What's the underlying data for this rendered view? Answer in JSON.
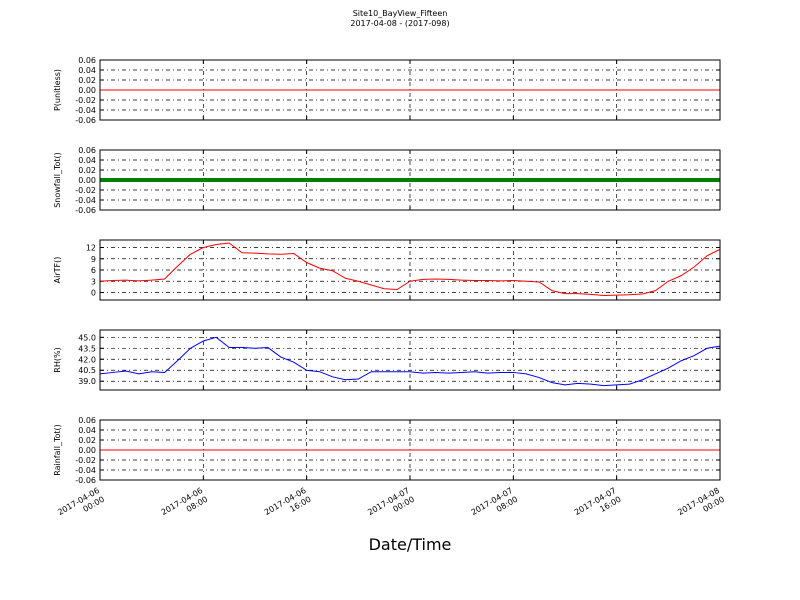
{
  "chart_data": [
    {
      "type": "line",
      "title": "Site10_BayView_Fifteen",
      "subtitle": "2017-04-08 - (2017-098)",
      "ylabel": "P(unitless)",
      "x": [
        "2017-04-06 00:00",
        "2017-04-06 01:00",
        "2017-04-06 02:00",
        "2017-04-06 03:00",
        "2017-04-06 04:00",
        "2017-04-06 05:00",
        "2017-04-06 06:00",
        "2017-04-06 07:00",
        "2017-04-06 08:00",
        "2017-04-06 09:00",
        "2017-04-06 10:00",
        "2017-04-06 11:00",
        "2017-04-06 12:00",
        "2017-04-06 13:00",
        "2017-04-06 14:00",
        "2017-04-06 15:00",
        "2017-04-06 16:00",
        "2017-04-06 17:00",
        "2017-04-06 18:00",
        "2017-04-06 19:00",
        "2017-04-06 20:00",
        "2017-04-06 21:00",
        "2017-04-06 22:00",
        "2017-04-06 23:00",
        "2017-04-07 00:00",
        "2017-04-07 01:00",
        "2017-04-07 02:00",
        "2017-04-07 03:00",
        "2017-04-07 04:00",
        "2017-04-07 05:00",
        "2017-04-07 06:00",
        "2017-04-07 07:00",
        "2017-04-07 08:00",
        "2017-04-07 09:00",
        "2017-04-07 10:00",
        "2017-04-07 11:00",
        "2017-04-07 12:00",
        "2017-04-07 13:00",
        "2017-04-07 14:00",
        "2017-04-07 15:00",
        "2017-04-07 16:00",
        "2017-04-07 17:00",
        "2017-04-07 18:00",
        "2017-04-07 19:00",
        "2017-04-07 20:00",
        "2017-04-07 21:00",
        "2017-04-07 22:00",
        "2017-04-07 23:00",
        "2017-04-08 00:00"
      ],
      "series": [
        {
          "color": "#ff0000",
          "values": [
            0,
            0,
            0,
            0,
            0,
            0,
            0,
            0,
            0,
            0,
            0,
            0,
            0,
            0,
            0,
            0,
            0,
            0,
            0,
            0,
            0,
            0,
            0,
            0,
            0,
            0,
            0,
            0,
            0,
            0,
            0,
            0,
            0,
            0,
            0,
            0,
            0,
            0,
            0,
            0,
            0,
            0,
            0,
            0,
            0,
            0,
            0,
            0,
            0
          ]
        }
      ],
      "ylim": [
        -0.06,
        0.06
      ],
      "yticks": [
        -0.06,
        -0.04,
        -0.02,
        {
          "value": 0,
          "label": "0.00"
        },
        0.02,
        0.04,
        0.06
      ],
      "grid": true
    },
    {
      "type": "line",
      "ylabel": "Snowfall_Tot()",
      "x": [
        "2017-04-06 00:00",
        "2017-04-06 01:00",
        "2017-04-06 02:00",
        "2017-04-06 03:00",
        "2017-04-06 04:00",
        "2017-04-06 05:00",
        "2017-04-06 06:00",
        "2017-04-06 07:00",
        "2017-04-06 08:00",
        "2017-04-06 09:00",
        "2017-04-06 10:00",
        "2017-04-06 11:00",
        "2017-04-06 12:00",
        "2017-04-06 13:00",
        "2017-04-06 14:00",
        "2017-04-06 15:00",
        "2017-04-06 16:00",
        "2017-04-06 17:00",
        "2017-04-06 18:00",
        "2017-04-06 19:00",
        "2017-04-06 20:00",
        "2017-04-06 21:00",
        "2017-04-06 22:00",
        "2017-04-06 23:00",
        "2017-04-07 00:00",
        "2017-04-07 01:00",
        "2017-04-07 02:00",
        "2017-04-07 03:00",
        "2017-04-07 04:00",
        "2017-04-07 05:00",
        "2017-04-07 06:00",
        "2017-04-07 07:00",
        "2017-04-07 08:00",
        "2017-04-07 09:00",
        "2017-04-07 10:00",
        "2017-04-07 11:00",
        "2017-04-07 12:00",
        "2017-04-07 13:00",
        "2017-04-07 14:00",
        "2017-04-07 15:00",
        "2017-04-07 16:00",
        "2017-04-07 17:00",
        "2017-04-07 18:00",
        "2017-04-07 19:00",
        "2017-04-07 20:00",
        "2017-04-07 21:00",
        "2017-04-07 22:00",
        "2017-04-07 23:00",
        "2017-04-08 00:00"
      ],
      "series": [
        {
          "color": "#008000",
          "values": [
            0,
            0,
            0,
            0,
            0,
            0,
            0,
            0,
            0,
            0,
            0,
            0,
            0,
            0,
            0,
            0,
            0,
            0,
            0,
            0,
            0,
            0,
            0,
            0,
            0,
            0,
            0,
            0,
            0,
            0,
            0,
            0,
            0,
            0,
            0,
            0,
            0,
            0,
            0,
            0,
            0,
            0,
            0,
            0,
            0,
            0,
            0,
            0,
            0
          ]
        }
      ],
      "ylim": [
        -0.06,
        0.06
      ],
      "yticks": [
        -0.06,
        -0.04,
        -0.02,
        {
          "value": 0,
          "label": "0.00"
        },
        0.02,
        0.04,
        0.06
      ],
      "grid": true
    },
    {
      "type": "line",
      "ylabel": "AirTF()",
      "x": [
        "2017-04-06 00:00",
        "2017-04-06 01:00",
        "2017-04-06 02:00",
        "2017-04-06 03:00",
        "2017-04-06 04:00",
        "2017-04-06 05:00",
        "2017-04-06 06:00",
        "2017-04-06 07:00",
        "2017-04-06 08:00",
        "2017-04-06 09:00",
        "2017-04-06 10:00",
        "2017-04-06 11:00",
        "2017-04-06 12:00",
        "2017-04-06 13:00",
        "2017-04-06 14:00",
        "2017-04-06 15:00",
        "2017-04-06 16:00",
        "2017-04-06 17:00",
        "2017-04-06 18:00",
        "2017-04-06 19:00",
        "2017-04-06 20:00",
        "2017-04-06 21:00",
        "2017-04-06 22:00",
        "2017-04-06 23:00",
        "2017-04-07 00:00",
        "2017-04-07 01:00",
        "2017-04-07 02:00",
        "2017-04-07 03:00",
        "2017-04-07 04:00",
        "2017-04-07 05:00",
        "2017-04-07 06:00",
        "2017-04-07 07:00",
        "2017-04-07 08:00",
        "2017-04-07 09:00",
        "2017-04-07 10:00",
        "2017-04-07 11:00",
        "2017-04-07 12:00",
        "2017-04-07 13:00",
        "2017-04-07 14:00",
        "2017-04-07 15:00",
        "2017-04-07 16:00",
        "2017-04-07 17:00",
        "2017-04-07 18:00",
        "2017-04-07 19:00",
        "2017-04-07 20:00",
        "2017-04-07 21:00",
        "2017-04-07 22:00",
        "2017-04-07 23:00",
        "2017-04-08 00:00"
      ],
      "series": [
        {
          "color": "#ff0000",
          "values": [
            3.0,
            3.2,
            3.3,
            3.1,
            3.3,
            3.6,
            7.0,
            10.2,
            12.0,
            12.8,
            13.2,
            10.6,
            10.5,
            10.3,
            10.2,
            10.4,
            8.0,
            6.5,
            5.8,
            3.8,
            3.0,
            2.0,
            1.0,
            0.8,
            3.0,
            3.5,
            3.6,
            3.5,
            3.3,
            3.2,
            3.2,
            3.1,
            3.2,
            3.0,
            2.8,
            0.5,
            -0.3,
            -0.3,
            -0.5,
            -0.8,
            -0.7,
            -0.6,
            -0.4,
            0.5,
            3.0,
            4.5,
            6.8,
            9.8,
            11.5
          ]
        }
      ],
      "ylim": [
        -2,
        14
      ],
      "yticks": [
        0,
        3,
        6,
        9,
        12
      ],
      "grid": true
    },
    {
      "type": "line",
      "ylabel": "RH(%)",
      "x": [
        "2017-04-06 00:00",
        "2017-04-06 01:00",
        "2017-04-06 02:00",
        "2017-04-06 03:00",
        "2017-04-06 04:00",
        "2017-04-06 05:00",
        "2017-04-06 06:00",
        "2017-04-06 07:00",
        "2017-04-06 08:00",
        "2017-04-06 09:00",
        "2017-04-06 10:00",
        "2017-04-06 11:00",
        "2017-04-06 12:00",
        "2017-04-06 13:00",
        "2017-04-06 14:00",
        "2017-04-06 15:00",
        "2017-04-06 16:00",
        "2017-04-06 17:00",
        "2017-04-06 18:00",
        "2017-04-06 19:00",
        "2017-04-06 20:00",
        "2017-04-06 21:00",
        "2017-04-06 22:00",
        "2017-04-06 23:00",
        "2017-04-07 00:00",
        "2017-04-07 01:00",
        "2017-04-07 02:00",
        "2017-04-07 03:00",
        "2017-04-07 04:00",
        "2017-04-07 05:00",
        "2017-04-07 06:00",
        "2017-04-07 07:00",
        "2017-04-07 08:00",
        "2017-04-07 09:00",
        "2017-04-07 10:00",
        "2017-04-07 11:00",
        "2017-04-07 12:00",
        "2017-04-07 13:00",
        "2017-04-07 14:00",
        "2017-04-07 15:00",
        "2017-04-07 16:00",
        "2017-04-07 17:00",
        "2017-04-07 18:00",
        "2017-04-07 19:00",
        "2017-04-07 20:00",
        "2017-04-07 21:00",
        "2017-04-07 22:00",
        "2017-04-07 23:00",
        "2017-04-08 00:00"
      ],
      "series": [
        {
          "color": "#0000ff",
          "values": [
            40.0,
            40.2,
            40.4,
            40.0,
            40.3,
            40.2,
            41.8,
            43.5,
            44.5,
            45.0,
            43.6,
            43.6,
            43.5,
            43.6,
            42.3,
            41.6,
            40.5,
            40.3,
            39.6,
            39.2,
            39.3,
            40.3,
            40.3,
            40.3,
            40.3,
            40.1,
            40.2,
            40.1,
            40.2,
            40.3,
            40.1,
            40.2,
            40.2,
            40.0,
            39.5,
            38.8,
            38.5,
            38.7,
            38.6,
            38.4,
            38.5,
            38.6,
            39.2,
            40.0,
            40.8,
            41.8,
            42.5,
            43.5,
            43.8
          ]
        }
      ],
      "ylim": [
        37.8,
        46
      ],
      "yticks": [
        {
          "value": 39,
          "label": "39.0"
        },
        40.5,
        {
          "value": 42,
          "label": "42.0"
        },
        43.5,
        {
          "value": 45,
          "label": "45.0"
        }
      ],
      "grid": true
    },
    {
      "type": "line",
      "ylabel": "Rainfall_Tot()",
      "xlabel": "Date/Time",
      "x": [
        "2017-04-06 00:00",
        "2017-04-06 01:00",
        "2017-04-06 02:00",
        "2017-04-06 03:00",
        "2017-04-06 04:00",
        "2017-04-06 05:00",
        "2017-04-06 06:00",
        "2017-04-06 07:00",
        "2017-04-06 08:00",
        "2017-04-06 09:00",
        "2017-04-06 10:00",
        "2017-04-06 11:00",
        "2017-04-06 12:00",
        "2017-04-06 13:00",
        "2017-04-06 14:00",
        "2017-04-06 15:00",
        "2017-04-06 16:00",
        "2017-04-06 17:00",
        "2017-04-06 18:00",
        "2017-04-06 19:00",
        "2017-04-06 20:00",
        "2017-04-06 21:00",
        "2017-04-06 22:00",
        "2017-04-06 23:00",
        "2017-04-07 00:00",
        "2017-04-07 01:00",
        "2017-04-07 02:00",
        "2017-04-07 03:00",
        "2017-04-07 04:00",
        "2017-04-07 05:00",
        "2017-04-07 06:00",
        "2017-04-07 07:00",
        "2017-04-07 08:00",
        "2017-04-07 09:00",
        "2017-04-07 10:00",
        "2017-04-07 11:00",
        "2017-04-07 12:00",
        "2017-04-07 13:00",
        "2017-04-07 14:00",
        "2017-04-07 15:00",
        "2017-04-07 16:00",
        "2017-04-07 17:00",
        "2017-04-07 18:00",
        "2017-04-07 19:00",
        "2017-04-07 20:00",
        "2017-04-07 21:00",
        "2017-04-07 22:00",
        "2017-04-07 23:00",
        "2017-04-08 00:00"
      ],
      "series": [
        {
          "color": "#ff0000",
          "values": [
            0,
            0,
            0,
            0,
            0,
            0,
            0,
            0,
            0,
            0,
            0,
            0,
            0,
            0,
            0,
            0,
            0,
            0,
            0,
            0,
            0,
            0,
            0,
            0,
            0,
            0,
            0,
            0,
            0,
            0,
            0,
            0,
            0,
            0,
            0,
            0,
            0,
            0,
            0,
            0,
            0,
            0,
            0,
            0,
            0,
            0,
            0,
            0,
            0
          ]
        }
      ],
      "ylim": [
        -0.06,
        0.06
      ],
      "yticks": [
        -0.06,
        -0.04,
        -0.02,
        {
          "value": 0,
          "label": "0.00"
        },
        0.02,
        0.04,
        0.06
      ],
      "grid": true,
      "xlim": [
        "2017-04-06 00:00",
        "2017-04-08 00:00"
      ],
      "xticks": [
        "2017-04-06 00:00",
        "2017-04-06 08:00",
        "2017-04-06 16:00",
        "2017-04-07 00:00",
        "2017-04-07 08:00",
        "2017-04-07 16:00",
        "2017-04-08 00:00"
      ]
    }
  ]
}
